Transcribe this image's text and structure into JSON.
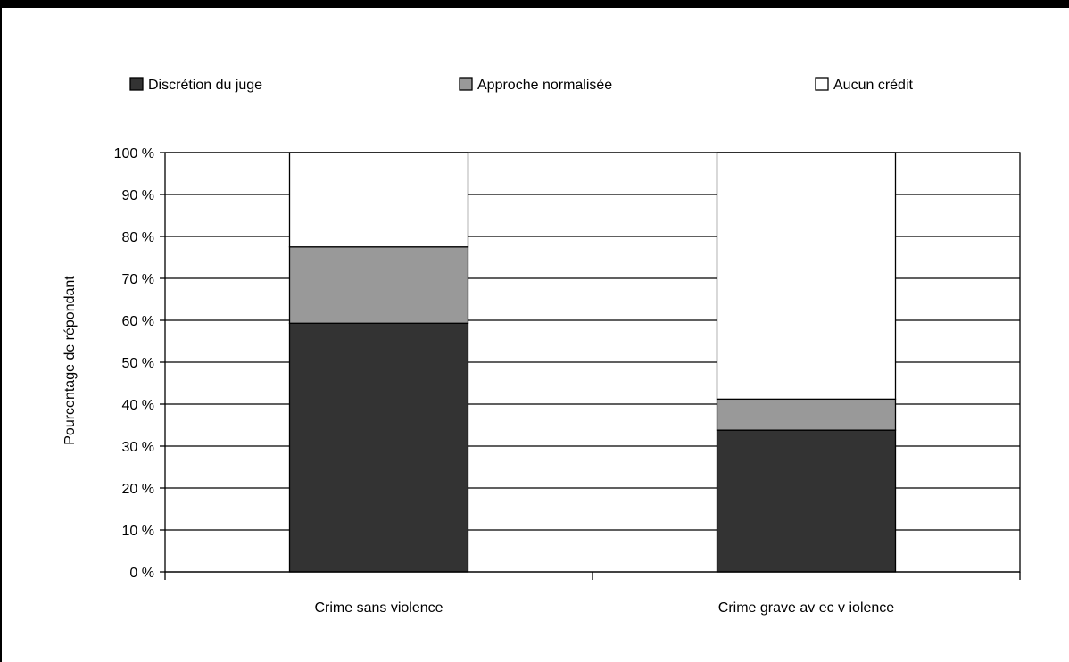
{
  "chart_data": {
    "type": "bar",
    "stacked": true,
    "categories": [
      "Crime sans violence",
      "Crime grave av ec v iolence"
    ],
    "series": [
      {
        "name": "Discrétion du juge",
        "values": [
          59.3,
          33.8
        ],
        "color": "#333333"
      },
      {
        "name": "Approche normalisée",
        "values": [
          18.2,
          7.4
        ],
        "color": "#999999"
      },
      {
        "name": "Aucun crédit",
        "values": [
          22.5,
          58.8
        ],
        "color": "#ffffff"
      }
    ],
    "ylabel": "Pourcentage de répondant",
    "xlabel": "",
    "ylim": [
      0,
      100
    ],
    "yticks": [
      "0 %",
      "10 %",
      "20 %",
      "30 %",
      "40 %",
      "50 %",
      "60 %",
      "70 %",
      "80 %",
      "90 %",
      "100 %"
    ],
    "grid": true,
    "legend_position": "top"
  }
}
